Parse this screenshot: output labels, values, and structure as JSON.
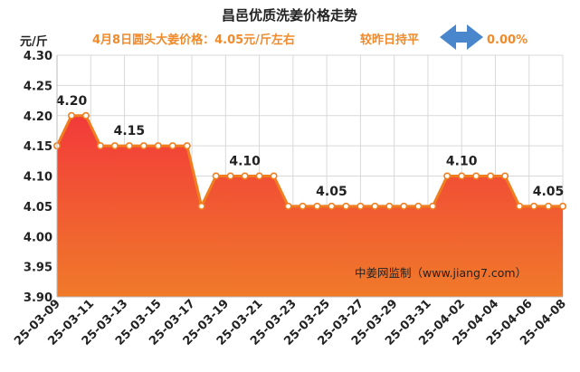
{
  "chart_data": {
    "type": "area",
    "title": "昌邑优质洗姜价格走势",
    "unit_label": "元/斤",
    "subtitle": "4月8日圆头大姜价格：4.05元/斤左右",
    "compare_text": "较昨日持平",
    "change_text": "0.00%",
    "watermark": "中姜网监制（www.jiang7.com）",
    "ylim": [
      3.9,
      4.3
    ],
    "yticks": [
      "4.30",
      "4.25",
      "4.20",
      "4.15",
      "4.10",
      "4.05",
      "4.00",
      "3.95",
      "3.90"
    ],
    "xticks": [
      "25-03-09",
      "25-03-11",
      "25-03-13",
      "25-03-15",
      "25-03-17",
      "25-03-19",
      "25-03-21",
      "25-03-23",
      "25-03-25",
      "25-03-27",
      "25-03-29",
      "25-03-31",
      "25-04-02",
      "25-04-04",
      "25-04-06",
      "25-04-08"
    ],
    "values": [
      4.15,
      4.2,
      4.2,
      4.15,
      4.15,
      4.15,
      4.15,
      4.15,
      4.15,
      4.15,
      4.05,
      4.1,
      4.1,
      4.1,
      4.1,
      4.1,
      4.05,
      4.05,
      4.05,
      4.05,
      4.05,
      4.05,
      4.05,
      4.05,
      4.05,
      4.05,
      4.05,
      4.1,
      4.1,
      4.1,
      4.1,
      4.1,
      4.05,
      4.05,
      4.05,
      4.05
    ],
    "data_labels": [
      {
        "index": 1,
        "text": "4.20"
      },
      {
        "index": 5,
        "text": "4.15"
      },
      {
        "index": 13,
        "text": "4.10"
      },
      {
        "index": 19,
        "text": "4.05"
      },
      {
        "index": 28,
        "text": "4.10"
      },
      {
        "index": 34,
        "text": "4.05"
      }
    ],
    "grid": true,
    "colors": {
      "title": "#222222",
      "subtitle": "#f08a2a",
      "line": "#f07e1e",
      "fill_top": "#f23a3a",
      "fill_bottom": "#f07a2a",
      "arrow": "#4a86cc",
      "grid": "#d9d9d9"
    }
  }
}
